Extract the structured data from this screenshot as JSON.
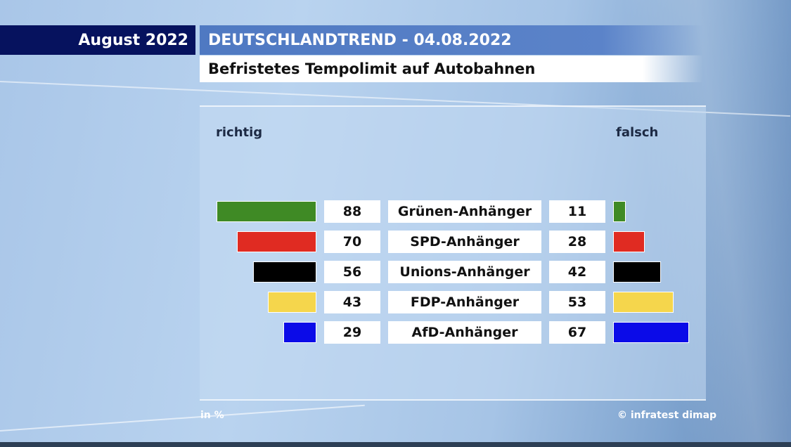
{
  "header": {
    "date": "August 2022",
    "title": "DEUTSCHLANDTREND - 04.08.2022",
    "subtitle": "Befristetes Tempolimit auf Autobahnen"
  },
  "legend": {
    "left": "richtig",
    "right": "falsch"
  },
  "footer": {
    "unit": "in %",
    "source": "© infratest dimap"
  },
  "chart_data": {
    "type": "bar",
    "orientation": "horizontal-diverging",
    "title": "Befristetes Tempolimit auf Autobahnen",
    "categories": [
      "Grünen-Anhänger",
      "SPD-Anhänger",
      "Unions-Anhänger",
      "FDP-Anhänger",
      "AfD-Anhänger"
    ],
    "series": [
      {
        "name": "richtig",
        "values": [
          88,
          70,
          56,
          43,
          29
        ]
      },
      {
        "name": "falsch",
        "values": [
          11,
          28,
          42,
          53,
          67
        ]
      }
    ],
    "colors": [
      "#3f8a25",
      "#e02b22",
      "#000000",
      "#f5d64c",
      "#0b0be8"
    ],
    "unit": "in %",
    "xlim": [
      0,
      100
    ]
  }
}
